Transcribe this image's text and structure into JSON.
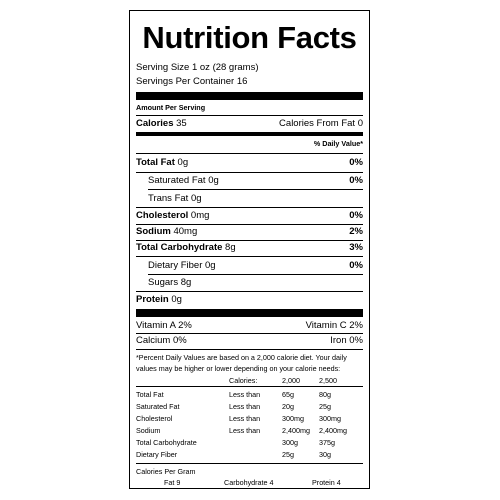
{
  "title": "Nutrition Facts",
  "serving_size": "Serving Size  1 oz (28 grams)",
  "servings_per_container": "Servings Per Container 16",
  "amount_per_serving": "Amount Per Serving",
  "calories_label": "Calories",
  "calories_value": "35",
  "calories_fat_label": "Calories From Fat",
  "calories_fat_value": "0",
  "dv_header": "% Daily Value*",
  "nutrients": [
    {
      "label": "Total Fat",
      "amount": "0g",
      "dv": "0%"
    },
    {
      "label": "Saturated Fat",
      "amount": "0g",
      "dv": "0%"
    },
    {
      "label": "Trans Fat",
      "amount": "0g",
      "dv": ""
    },
    {
      "label": "Cholesterol",
      "amount": "0mg",
      "dv": "0%"
    },
    {
      "label": "Sodium",
      "amount": "40mg",
      "dv": "2%"
    },
    {
      "label": "Total Carbohydrate",
      "amount": "8g",
      "dv": "3%"
    },
    {
      "label": "Dietary Fiber",
      "amount": "0g",
      "dv": "0%"
    },
    {
      "label": "Sugars",
      "amount": "8g",
      "dv": ""
    },
    {
      "label": "Protein",
      "amount": "0g",
      "dv": ""
    }
  ],
  "vitamins": [
    {
      "left": "Vitamin A 2%",
      "right": "Vitamin C 2%"
    },
    {
      "left": "Calcium 0%",
      "right": "Iron 0%"
    }
  ],
  "footnote": "*Percent Daily Values are based on a 2,000 calorie diet. Your daily values may be higher or lower depending on your calorie needs:",
  "table": {
    "header": [
      "Calories:",
      "2,000",
      "2,500"
    ],
    "rows": [
      [
        "Total Fat",
        "Less than",
        "65g",
        "80g"
      ],
      [
        "Saturated Fat",
        "Less than",
        "20g",
        "25g"
      ],
      [
        "Cholesterol",
        "Less than",
        "300mg",
        "300mg"
      ],
      [
        "Sodium",
        "Less than",
        "2,400mg",
        "2,400mg"
      ],
      [
        "Total Carbohydrate",
        "",
        "300g",
        "375g"
      ],
      [
        "Dietary Fiber",
        "",
        "25g",
        "30g"
      ]
    ]
  },
  "calories_per_gram": "Calories Per Gram",
  "per_gram": [
    "Fat 9",
    "Carbohydrate 4",
    "Protein 4"
  ]
}
